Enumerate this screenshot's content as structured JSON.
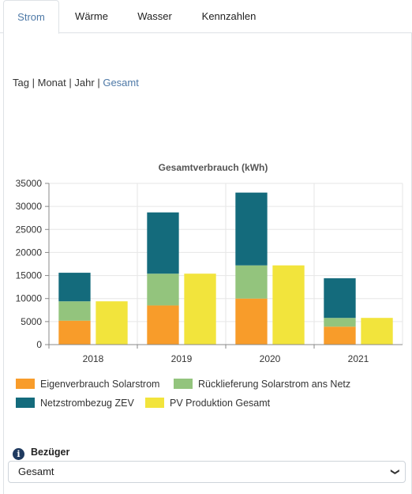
{
  "tabs": [
    "Strom",
    "Wärme",
    "Wasser",
    "Kennzahlen"
  ],
  "active_tab": "Strom",
  "period": {
    "options": [
      "Tag",
      "Monat",
      "Jahr",
      "Gesamt"
    ],
    "separator": "|",
    "active": "Gesamt"
  },
  "chart_data": {
    "type": "bar",
    "title": "Gesamtverbrauch (kWh)",
    "categories": [
      "2018",
      "2019",
      "2020",
      "2021"
    ],
    "ylim": [
      0,
      35000
    ],
    "yticks": [
      "0",
      "5000",
      "10000",
      "15000",
      "20000",
      "25000",
      "30000",
      "35000"
    ],
    "grid": true,
    "stacks": [
      {
        "name": "consumption",
        "series": [
          {
            "name": "Eigenverbrauch Solarstrom",
            "color": "#f89c2a",
            "values": [
              5200,
              8500,
              10000,
              3900
            ]
          },
          {
            "name": "Rücklieferung Solarstrom ans Netz",
            "color": "#93c47d",
            "values": [
              4200,
              6900,
              7200,
              1900
            ]
          },
          {
            "name": "Netzstrombezug ZEV",
            "color": "#146b7c",
            "values": [
              6200,
              13300,
              15800,
              8600
            ]
          }
        ]
      },
      {
        "name": "production",
        "series": [
          {
            "name": "PV Produktion Gesamt",
            "color": "#f2e43c",
            "values": [
              9400,
              15400,
              17200,
              5800
            ]
          }
        ]
      }
    ],
    "legend_position": "bottom"
  },
  "legend": [
    {
      "label": "Eigenverbrauch Solarstrom",
      "color": "#f89c2a"
    },
    {
      "label": "Rücklieferung Solarstrom ans Netz",
      "color": "#93c47d"
    },
    {
      "label": "Netzstrombezug ZEV",
      "color": "#146b7c"
    },
    {
      "label": "PV Produktion Gesamt",
      "color": "#f2e43c"
    }
  ],
  "bezueger": {
    "label": "Bezüger",
    "icon": "info-icon",
    "selected": "Gesamt"
  }
}
